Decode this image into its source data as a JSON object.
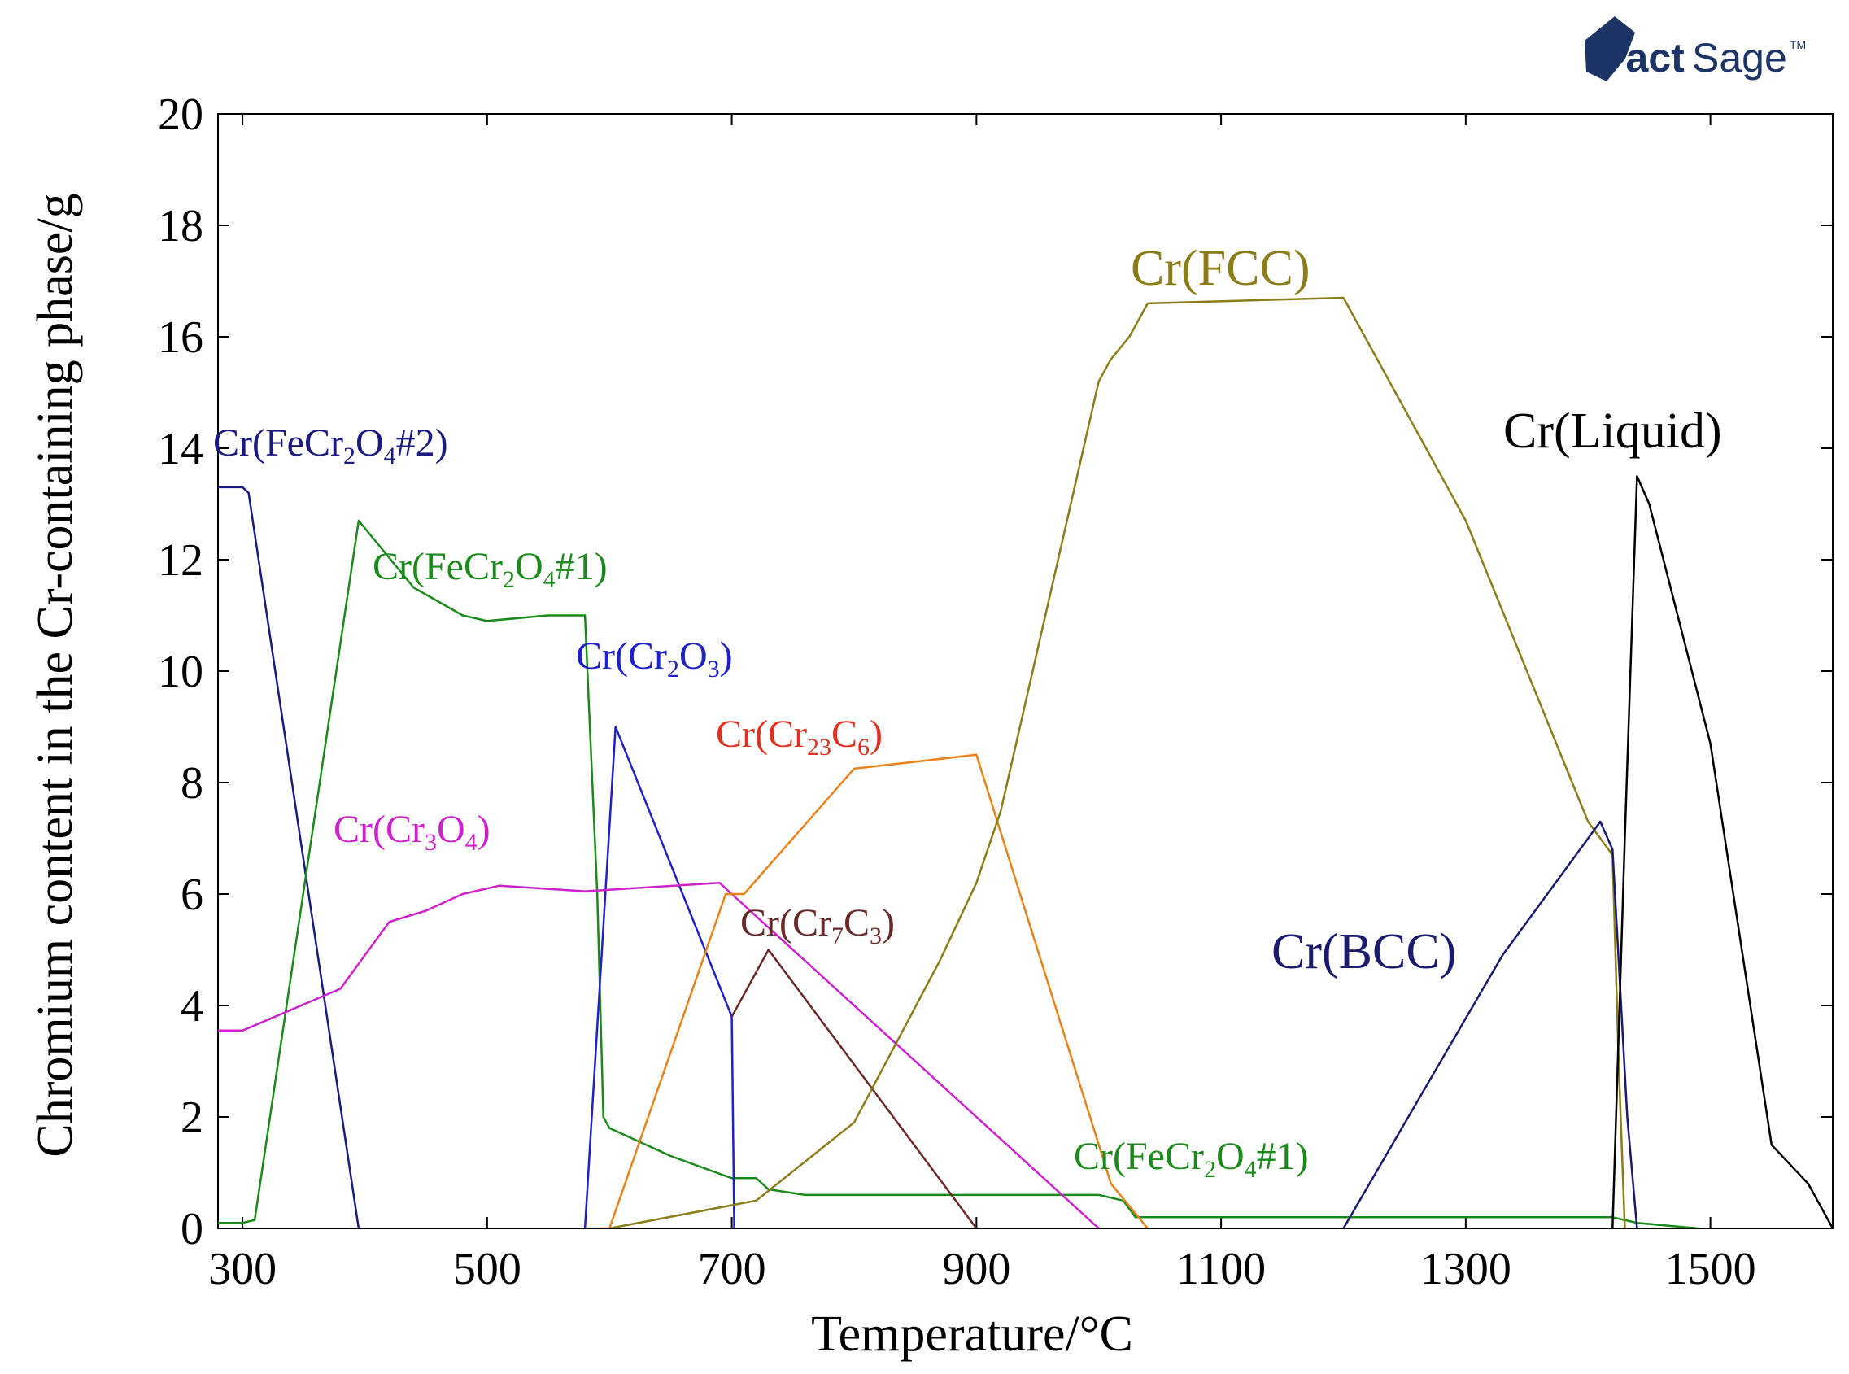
{
  "logo": {
    "bold": "Fact",
    "thin": "Sage",
    "tm": "TM"
  },
  "chart_data": {
    "type": "line",
    "xlabel": "Temperature/°C",
    "ylabel": "Chromium content in the Cr-containing phase/g",
    "xlim": [
      280,
      1600
    ],
    "ylim": [
      0,
      20
    ],
    "grid": false,
    "xticks": [
      300,
      500,
      700,
      900,
      1100,
      1300,
      1500
    ],
    "yticks": [
      0,
      2,
      4,
      6,
      8,
      10,
      12,
      14,
      16,
      18,
      20
    ],
    "xtick_labels": [
      "300",
      "500",
      "700",
      "900",
      "1100",
      "1300",
      "1500"
    ],
    "ytick_labels": [
      "0",
      "2",
      "4",
      "6",
      "8",
      "10",
      "12",
      "14",
      "16",
      "18",
      "20"
    ],
    "series": [
      {
        "name": "Cr(FeCr2O4#2)",
        "color": "#1a1a80",
        "x": [
          280,
          300,
          305,
          395
        ],
        "y": [
          13.3,
          13.3,
          13.2,
          0
        ]
      },
      {
        "name": "Cr(FeCr2O4#1)",
        "color": "#1a8a1a",
        "x": [
          280,
          300,
          310,
          395,
          440,
          480,
          500,
          550,
          580,
          590,
          595,
          600,
          650,
          700,
          720,
          730,
          760,
          1000,
          1020,
          1030,
          1100,
          1300,
          1420,
          1440,
          1490
        ],
        "y": [
          0.1,
          0.1,
          0.15,
          12.7,
          11.5,
          11.0,
          10.9,
          11.0,
          11.0,
          6,
          2,
          1.8,
          1.3,
          0.9,
          0.9,
          0.7,
          0.6,
          0.6,
          0.5,
          0.2,
          0.2,
          0.2,
          0.2,
          0.1,
          0
        ]
      },
      {
        "name": "Cr(Cr2O3)",
        "color": "#2020c8",
        "x": [
          580,
          605,
          700,
          702
        ],
        "y": [
          0,
          9.0,
          3.8,
          0
        ]
      },
      {
        "name": "Cr(Cr3O4)",
        "color": "#cc22cc",
        "x": [
          280,
          300,
          380,
          420,
          450,
          480,
          510,
          580,
          690,
          700,
          1000
        ],
        "y": [
          3.55,
          3.55,
          4.3,
          5.5,
          5.7,
          6.0,
          6.15,
          6.05,
          6.2,
          6.0,
          0
        ]
      },
      {
        "name": "Cr(Cr23C6)",
        "color": "#e8821a",
        "x": [
          580,
          600,
          695,
          710,
          800,
          900,
          1010,
          1040
        ],
        "y": [
          0,
          0,
          6.0,
          6.0,
          8.25,
          8.5,
          0.8,
          0
        ]
      },
      {
        "name": "Cr(Cr7C3)",
        "color": "#6b2a2a",
        "x": [
          700,
          730,
          900
        ],
        "y": [
          3.8,
          5.0,
          0
        ]
      },
      {
        "name": "Cr(FCC)",
        "color": "#8b7d1a",
        "x": [
          600,
          720,
          800,
          870,
          900,
          920,
          1000,
          1010,
          1025,
          1040,
          1200,
          1300,
          1400,
          1420,
          1425,
          1430
        ],
        "y": [
          0,
          0.5,
          1.9,
          4.8,
          6.2,
          7.5,
          15.2,
          15.6,
          16.0,
          16.6,
          16.7,
          12.7,
          7.3,
          6.7,
          3,
          0
        ]
      },
      {
        "name": "Cr(BCC)",
        "color": "#1a1a6e",
        "x": [
          1200,
          1330,
          1410,
          1420,
          1432,
          1440
        ],
        "y": [
          0,
          4.9,
          7.3,
          6.8,
          2,
          0
        ]
      },
      {
        "name": "Cr(Liquid)",
        "color": "#000000",
        "x": [
          1420,
          1430,
          1440,
          1450,
          1500,
          1550,
          1580,
          1600
        ],
        "y": [
          0,
          7,
          13.5,
          13.0,
          8.7,
          1.5,
          0.8,
          0
        ]
      }
    ],
    "labels": [
      {
        "series": "Cr(FeCr2O4#2)",
        "pre": "Cr(FeCr",
        "sub1": "2",
        "mid": "O",
        "sub2": "4",
        "post": "#2)",
        "color": "#1a1a80",
        "size": "normal"
      },
      {
        "series": "Cr(FeCr2O4#1)",
        "pre": "Cr(FeCr",
        "sub1": "2",
        "mid": "O",
        "sub2": "4",
        "post": "#1)",
        "color": "#1a8a1a",
        "size": "normal"
      },
      {
        "series": "Cr(Cr2O3)",
        "pre": "Cr(Cr",
        "sub1": "2",
        "mid": "O",
        "sub2": "3",
        "post": ")",
        "color": "#2020c8",
        "size": "normal"
      },
      {
        "series": "Cr(Cr23C6)",
        "pre": "Cr(Cr",
        "sub1": "23",
        "mid": "C",
        "sub2": "6",
        "post": ")",
        "color": "#e03020",
        "size": "normal"
      },
      {
        "series": "Cr(Cr3O4)",
        "pre": "Cr(Cr",
        "sub1": "3",
        "mid": "O",
        "sub2": "4",
        "post": ")",
        "color": "#cc22cc",
        "size": "normal"
      },
      {
        "series": "Cr(Cr7C3)",
        "pre": "Cr(Cr",
        "sub1": "7",
        "mid": "C",
        "sub2": "3",
        "post": ")",
        "color": "#6b2a2a",
        "size": "normal"
      },
      {
        "series": "Cr(FeCr2O4#1)",
        "pre": "Cr(FeCr",
        "sub1": "2",
        "mid": "O",
        "sub2": "4",
        "post": "#1)",
        "color": "#1a8a1a",
        "size": "normal"
      },
      {
        "series": "Cr(FCC)",
        "pre": "Cr(FCC)",
        "sub1": "",
        "mid": "",
        "sub2": "",
        "post": "",
        "color": "#8b7d1a",
        "size": "big"
      },
      {
        "series": "Cr(Liquid)",
        "pre": "Cr(Liquid)",
        "sub1": "",
        "mid": "",
        "sub2": "",
        "post": "",
        "color": "#000000",
        "size": "big"
      },
      {
        "series": "Cr(BCC)",
        "pre": "Cr(BCC)",
        "sub1": "",
        "mid": "",
        "sub2": "",
        "post": "",
        "color": "#1a1a6e",
        "size": "big"
      }
    ]
  }
}
